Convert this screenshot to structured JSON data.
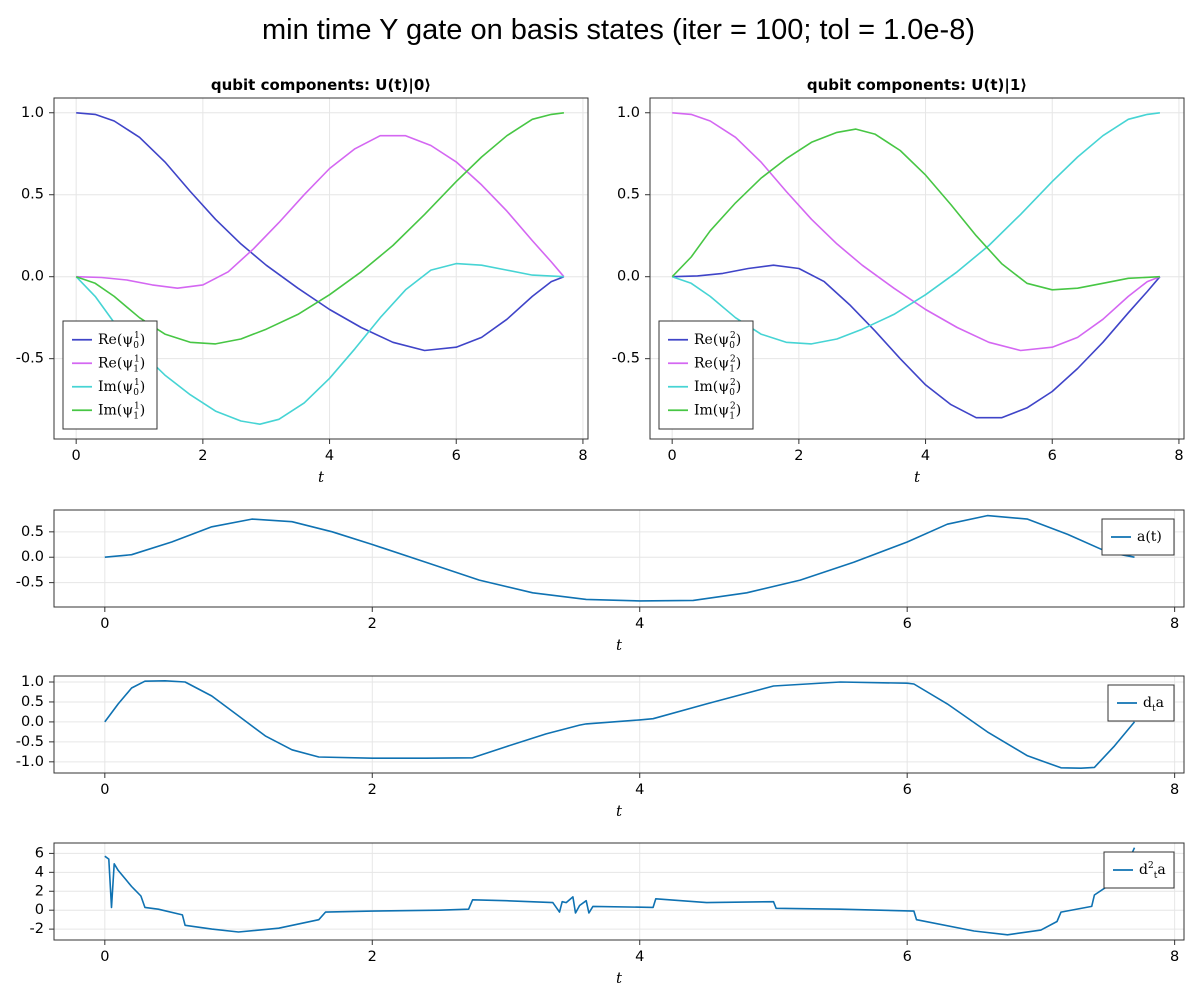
{
  "title": "min time Y gate on basis states (iter = 100; tol = 1.0e-8)",
  "chart_data": [
    {
      "type": "line",
      "title": "qubit components: U(t)|0⟩",
      "xlabel": "t",
      "ylabel": "",
      "xlim": [
        -0.35,
        8.08
      ],
      "ylim": [
        -0.99,
        1.09
      ],
      "xticks": [
        0,
        2,
        4,
        6,
        8
      ],
      "yticks": [
        -0.5,
        0.0,
        0.5,
        1.0
      ],
      "xtick_labels": [
        "0",
        "2",
        "4",
        "6",
        "8"
      ],
      "ytick_labels": [
        "-0.5",
        "0.0",
        "0.5",
        "1.0"
      ],
      "grid": true,
      "legend_position": "bottom-left",
      "series": [
        {
          "name": "Re(ψ₀¹)",
          "color": "#3f44c8",
          "x": [
            0,
            0.3,
            0.6,
            1.0,
            1.4,
            1.8,
            2.2,
            2.6,
            3.0,
            3.5,
            4.0,
            4.5,
            5.0,
            5.5,
            6.0,
            6.4,
            6.8,
            7.2,
            7.5,
            7.7
          ],
          "y": [
            1.0,
            0.99,
            0.95,
            0.85,
            0.7,
            0.52,
            0.35,
            0.2,
            0.07,
            -0.07,
            -0.2,
            -0.31,
            -0.4,
            -0.45,
            -0.43,
            -0.37,
            -0.26,
            -0.12,
            -0.03,
            0.0
          ]
        },
        {
          "name": "Re(ψ₁¹)",
          "color": "#d467f2",
          "x": [
            0,
            0.4,
            0.8,
            1.2,
            1.6,
            2.0,
            2.4,
            2.8,
            3.2,
            3.6,
            4.0,
            4.4,
            4.8,
            5.2,
            5.6,
            6.0,
            6.4,
            6.8,
            7.2,
            7.5,
            7.7
          ],
          "y": [
            0.0,
            -0.005,
            -0.02,
            -0.05,
            -0.07,
            -0.05,
            0.03,
            0.17,
            0.33,
            0.5,
            0.66,
            0.78,
            0.86,
            0.86,
            0.8,
            0.7,
            0.56,
            0.4,
            0.22,
            0.09,
            0.0
          ]
        },
        {
          "name": "Im(ψ₀¹)",
          "color": "#46d4d4",
          "x": [
            0,
            0.3,
            0.6,
            1.0,
            1.4,
            1.8,
            2.2,
            2.6,
            2.9,
            3.2,
            3.6,
            4.0,
            4.4,
            4.8,
            5.2,
            5.6,
            6.0,
            6.4,
            6.8,
            7.2,
            7.7
          ],
          "y": [
            0.0,
            -0.12,
            -0.28,
            -0.45,
            -0.6,
            -0.72,
            -0.82,
            -0.88,
            -0.9,
            -0.87,
            -0.77,
            -0.62,
            -0.44,
            -0.25,
            -0.08,
            0.04,
            0.08,
            0.07,
            0.04,
            0.01,
            0.0
          ]
        },
        {
          "name": "Im(ψ₁¹)",
          "color": "#47c644",
          "x": [
            0,
            0.3,
            0.6,
            1.0,
            1.4,
            1.8,
            2.2,
            2.6,
            3.0,
            3.5,
            4.0,
            4.5,
            5.0,
            5.5,
            6.0,
            6.4,
            6.8,
            7.2,
            7.5,
            7.7
          ],
          "y": [
            0.0,
            -0.04,
            -0.12,
            -0.25,
            -0.35,
            -0.4,
            -0.41,
            -0.38,
            -0.32,
            -0.23,
            -0.11,
            0.03,
            0.19,
            0.38,
            0.58,
            0.73,
            0.86,
            0.96,
            0.99,
            1.0
          ]
        }
      ]
    },
    {
      "type": "line",
      "title": "qubit components: U(t)|1⟩",
      "xlabel": "t",
      "ylabel": "",
      "xlim": [
        -0.35,
        8.08
      ],
      "ylim": [
        -0.99,
        1.09
      ],
      "xticks": [
        0,
        2,
        4,
        6,
        8
      ],
      "yticks": [
        -0.5,
        0.0,
        0.5,
        1.0
      ],
      "xtick_labels": [
        "0",
        "2",
        "4",
        "6",
        "8"
      ],
      "ytick_labels": [
        "-0.5",
        "0.0",
        "0.5",
        "1.0"
      ],
      "grid": true,
      "legend_position": "bottom-left",
      "series": [
        {
          "name": "Re(ψ₀²)",
          "color": "#3f44c8",
          "x": [
            0,
            0.4,
            0.8,
            1.2,
            1.6,
            2.0,
            2.4,
            2.8,
            3.2,
            3.6,
            4.0,
            4.4,
            4.8,
            5.2,
            5.6,
            6.0,
            6.4,
            6.8,
            7.2,
            7.5,
            7.7
          ],
          "y": [
            0.0,
            0.005,
            0.02,
            0.05,
            0.07,
            0.05,
            -0.03,
            -0.17,
            -0.33,
            -0.5,
            -0.66,
            -0.78,
            -0.86,
            -0.86,
            -0.8,
            -0.7,
            -0.56,
            -0.4,
            -0.22,
            -0.09,
            0.0
          ]
        },
        {
          "name": "Re(ψ₁²)",
          "color": "#d467f2",
          "x": [
            0,
            0.3,
            0.6,
            1.0,
            1.4,
            1.8,
            2.2,
            2.6,
            3.0,
            3.5,
            4.0,
            4.5,
            5.0,
            5.5,
            6.0,
            6.4,
            6.8,
            7.2,
            7.5,
            7.7
          ],
          "y": [
            1.0,
            0.99,
            0.95,
            0.85,
            0.7,
            0.52,
            0.35,
            0.2,
            0.07,
            -0.07,
            -0.2,
            -0.31,
            -0.4,
            -0.45,
            -0.43,
            -0.37,
            -0.26,
            -0.12,
            -0.03,
            0.0
          ]
        },
        {
          "name": "Im(ψ₀²)",
          "color": "#46d4d4",
          "x": [
            0,
            0.3,
            0.6,
            1.0,
            1.4,
            1.8,
            2.2,
            2.6,
            3.0,
            3.5,
            4.0,
            4.5,
            5.0,
            5.5,
            6.0,
            6.4,
            6.8,
            7.2,
            7.5,
            7.7
          ],
          "y": [
            0.0,
            -0.04,
            -0.12,
            -0.25,
            -0.35,
            -0.4,
            -0.41,
            -0.38,
            -0.32,
            -0.23,
            -0.11,
            0.03,
            0.19,
            0.38,
            0.58,
            0.73,
            0.86,
            0.96,
            0.99,
            1.0
          ]
        },
        {
          "name": "Im(ψ₁²)",
          "color": "#47c644",
          "x": [
            0,
            0.3,
            0.6,
            1.0,
            1.4,
            1.8,
            2.2,
            2.6,
            2.9,
            3.2,
            3.6,
            4.0,
            4.4,
            4.8,
            5.2,
            5.6,
            6.0,
            6.4,
            6.8,
            7.2,
            7.7
          ],
          "y": [
            0.0,
            0.12,
            0.28,
            0.45,
            0.6,
            0.72,
            0.82,
            0.88,
            0.9,
            0.87,
            0.77,
            0.62,
            0.44,
            0.25,
            0.08,
            -0.04,
            -0.08,
            -0.07,
            -0.04,
            -0.01,
            0.0
          ]
        }
      ]
    },
    {
      "type": "line",
      "title": "",
      "xlabel": "t",
      "ylabel": "",
      "xlim": [
        -0.38,
        8.07
      ],
      "ylim": [
        -0.98,
        0.93
      ],
      "xticks": [
        0,
        2,
        4,
        6,
        8
      ],
      "yticks": [
        -0.5,
        0.0,
        0.5
      ],
      "xtick_labels": [
        "0",
        "2",
        "4",
        "6",
        "8"
      ],
      "ytick_labels": [
        "-0.5",
        "0.0",
        "0.5"
      ],
      "grid": true,
      "legend_position": "top-right",
      "series": [
        {
          "name": "a(t)",
          "color": "#0f72b2",
          "x": [
            0,
            0.2,
            0.5,
            0.8,
            1.1,
            1.4,
            1.7,
            2.0,
            2.4,
            2.8,
            3.2,
            3.6,
            4.0,
            4.4,
            4.8,
            5.2,
            5.6,
            6.0,
            6.3,
            6.6,
            6.9,
            7.2,
            7.5,
            7.7
          ],
          "y": [
            0.0,
            0.05,
            0.3,
            0.6,
            0.75,
            0.7,
            0.5,
            0.25,
            -0.1,
            -0.45,
            -0.7,
            -0.83,
            -0.86,
            -0.85,
            -0.7,
            -0.45,
            -0.1,
            0.3,
            0.65,
            0.82,
            0.75,
            0.45,
            0.1,
            0.0
          ]
        }
      ]
    },
    {
      "type": "line",
      "title": "",
      "xlabel": "t",
      "ylabel": "",
      "xlim": [
        -0.38,
        8.07
      ],
      "ylim": [
        -1.28,
        1.15
      ],
      "xticks": [
        0,
        2,
        4,
        6,
        8
      ],
      "yticks": [
        -1.0,
        -0.5,
        0.0,
        0.5,
        1.0
      ],
      "xtick_labels": [
        "0",
        "2",
        "4",
        "6",
        "8"
      ],
      "ytick_labels": [
        "-1.0",
        "-0.5",
        "0.0",
        "0.5",
        "1.0"
      ],
      "grid": true,
      "legend_position": "top-right",
      "series": [
        {
          "name": "dₜa",
          "color": "#0f72b2",
          "x": [
            0,
            0.1,
            0.2,
            0.3,
            0.45,
            0.6,
            0.8,
            1.0,
            1.2,
            1.4,
            1.6,
            2.0,
            2.4,
            2.75,
            3.0,
            3.3,
            3.55,
            3.6,
            4.0,
            4.1,
            4.5,
            5.0,
            5.5,
            6.0,
            6.05,
            6.3,
            6.6,
            6.9,
            7.15,
            7.3,
            7.4,
            7.55,
            7.7
          ],
          "y": [
            0.0,
            0.45,
            0.85,
            1.02,
            1.03,
            1.0,
            0.65,
            0.15,
            -0.35,
            -0.7,
            -0.88,
            -0.91,
            -0.91,
            -0.9,
            -0.62,
            -0.3,
            -0.08,
            -0.05,
            0.05,
            0.08,
            0.45,
            0.9,
            1.0,
            0.97,
            0.95,
            0.45,
            -0.25,
            -0.85,
            -1.15,
            -1.16,
            -1.14,
            -0.6,
            0.0
          ]
        }
      ]
    },
    {
      "type": "line",
      "title": "",
      "xlabel": "t",
      "ylabel": "",
      "xlim": [
        -0.38,
        8.07
      ],
      "ylim": [
        -3.15,
        7.1
      ],
      "xticks": [
        0,
        2,
        4,
        6,
        8
      ],
      "yticks": [
        -2,
        0,
        2,
        4,
        6
      ],
      "xtick_labels": [
        "0",
        "2",
        "4",
        "6",
        "8"
      ],
      "ytick_labels": [
        "-2",
        "0",
        "2",
        "4",
        "6"
      ],
      "grid": true,
      "legend_position": "top-right",
      "series": [
        {
          "name": "d²ₜa",
          "color": "#0f72b2",
          "x": [
            0,
            0.03,
            0.05,
            0.07,
            0.1,
            0.2,
            0.27,
            0.3,
            0.4,
            0.58,
            0.6,
            0.8,
            1.0,
            1.3,
            1.6,
            1.65,
            2.0,
            2.5,
            2.72,
            2.75,
            3.0,
            3.35,
            3.4,
            3.42,
            3.45,
            3.5,
            3.52,
            3.55,
            3.6,
            3.62,
            3.65,
            4.1,
            4.12,
            4.5,
            5.0,
            5.02,
            5.5,
            6.05,
            6.07,
            6.5,
            6.75,
            7.0,
            7.12,
            7.15,
            7.38,
            7.4,
            7.6,
            7.7
          ],
          "y": [
            5.7,
            5.4,
            0.3,
            4.9,
            4.2,
            2.5,
            1.5,
            0.3,
            0.1,
            -0.5,
            -1.6,
            -2.0,
            -2.3,
            -1.9,
            -1.0,
            -0.2,
            -0.1,
            0.0,
            0.1,
            1.1,
            1.0,
            0.8,
            -0.2,
            0.9,
            0.8,
            1.4,
            -0.3,
            0.5,
            1.0,
            -0.3,
            0.4,
            0.3,
            1.2,
            0.8,
            0.9,
            0.2,
            0.1,
            -0.1,
            -1.0,
            -2.2,
            -2.6,
            -2.1,
            -1.2,
            -0.2,
            0.4,
            1.6,
            3.5,
            6.6
          ]
        }
      ]
    }
  ]
}
